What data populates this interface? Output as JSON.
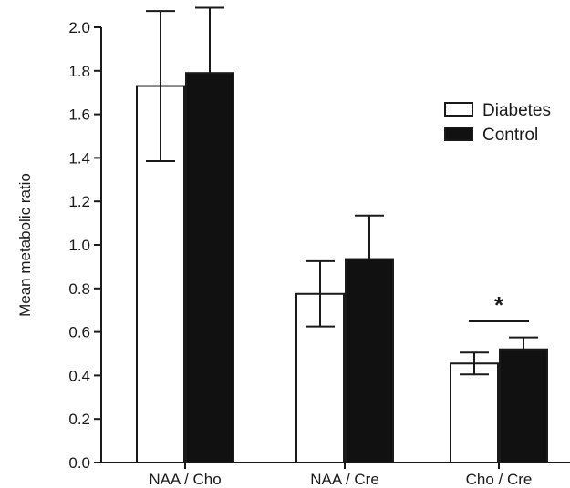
{
  "chart_data": {
    "type": "bar",
    "title": "",
    "xlabel": "",
    "ylabel": "Mean metabolic ratio",
    "ylim": [
      0,
      2.0
    ],
    "yticks": [
      "0.0",
      "0.2",
      "0.4",
      "0.6",
      "0.8",
      "1.0",
      "1.2",
      "1.4",
      "1.6",
      "1.8",
      "2.0"
    ],
    "categories": [
      "NAA / Cho",
      "NAA / Cre",
      "Cho / Cre"
    ],
    "series": [
      {
        "name": "Diabetes",
        "fill": "#ffffff",
        "values": [
          1.73,
          0.775,
          0.455
        ],
        "errors": [
          0.345,
          0.15,
          0.05
        ]
      },
      {
        "name": "Control",
        "fill": "#111111",
        "values": [
          1.79,
          0.935,
          0.52
        ],
        "errors": [
          0.3,
          0.2,
          0.055
        ]
      }
    ],
    "error_direction": "diabetes both directions, control upper only",
    "annotations": [
      {
        "text": "*",
        "category": "Cho / Cre",
        "between_series": [
          "Diabetes",
          "Control"
        ]
      }
    ],
    "legend": {
      "position": "top-right"
    },
    "grid": false
  }
}
